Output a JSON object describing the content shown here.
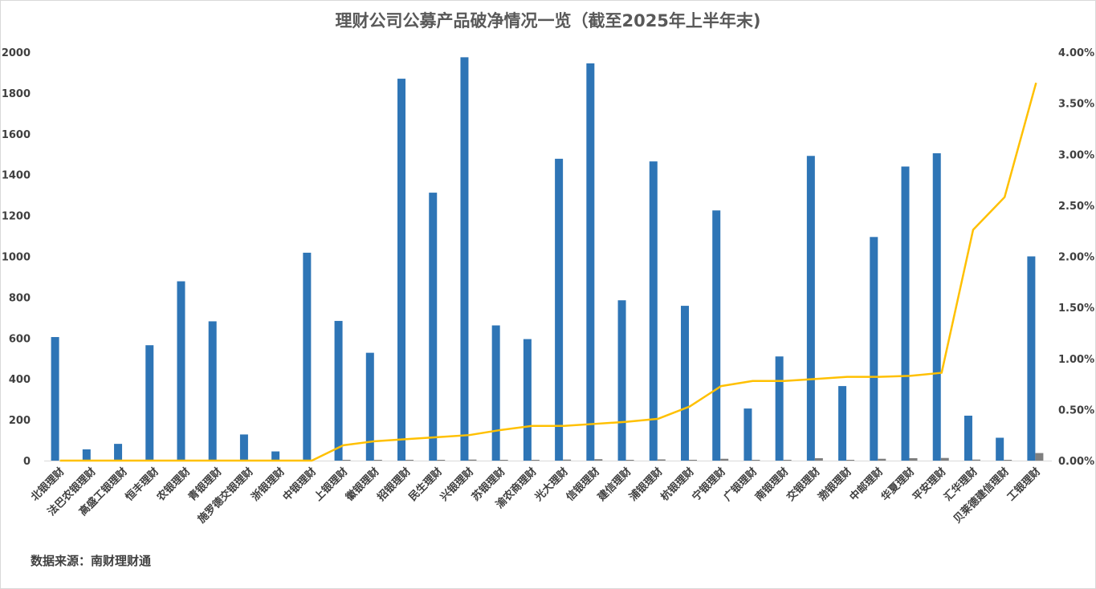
{
  "chart_data": {
    "type": "bar",
    "title": "理财公司公募产品破净情况一览（截至2025年上半年末)",
    "source": "数据来源：南财理财通",
    "categories": [
      "北银理财",
      "法巴农银理财",
      "高盛工银理财",
      "恒丰理财",
      "农银理财",
      "青银理财",
      "施罗德交银理财",
      "浙银理财",
      "中银理财",
      "上银理财",
      "徽银理财",
      "招银理财",
      "民生理财",
      "兴银理财",
      "苏银理财",
      "渝农商理财",
      "光大理财",
      "信银理财",
      "建信理财",
      "浦银理财",
      "杭银理财",
      "宁银理财",
      "广银理财",
      "南银理财",
      "交银理财",
      "渤银理财",
      "中邮理财",
      "华夏理财",
      "平安理财",
      "汇华理财",
      "贝莱德建信理财",
      "工银理财"
    ],
    "series": [
      {
        "name": "",
        "axis": "left",
        "color": "#2e75b6",
        "values": [
          605,
          55,
          82,
          565,
          878,
          682,
          128,
          45,
          1018,
          684,
          528,
          1870,
          1312,
          1975,
          662,
          595,
          1478,
          1945,
          785,
          1465,
          758,
          1225,
          255,
          510,
          1492,
          365,
          1095,
          1440,
          1505,
          220,
          112,
          1000
        ]
      },
      {
        "name": "",
        "axis": "left",
        "color": "#7f7f7f",
        "values": [
          0,
          0,
          0,
          0,
          0,
          0,
          0,
          0,
          0,
          2,
          1,
          4,
          3,
          5,
          2,
          2,
          5,
          7,
          3,
          6,
          4,
          9,
          2,
          4,
          12,
          3,
          9,
          12,
          13,
          5,
          3,
          37
        ]
      },
      {
        "name": "",
        "axis": "right",
        "type": "line",
        "color": "#ffc000",
        "values": [
          0,
          0,
          0,
          0,
          0,
          0,
          0,
          0,
          0,
          0.15,
          0.19,
          0.21,
          0.23,
          0.25,
          0.3,
          0.34,
          0.34,
          0.36,
          0.38,
          0.41,
          0.53,
          0.73,
          0.78,
          0.78,
          0.8,
          0.82,
          0.82,
          0.83,
          0.86,
          2.26,
          2.58,
          3.7
        ]
      }
    ],
    "ylim": [
      0,
      2000
    ],
    "yticks": [
      "0",
      "200",
      "400",
      "600",
      "800",
      "1000",
      "1200",
      "1400",
      "1600",
      "1800",
      "2000"
    ],
    "y2lim": [
      0,
      4.0
    ],
    "y2ticks": [
      "0.00%",
      "0.50%",
      "1.00%",
      "1.50%",
      "2.00%",
      "2.50%",
      "3.00%",
      "3.50%",
      "4.00%"
    ],
    "grid": false,
    "legend": "none"
  }
}
